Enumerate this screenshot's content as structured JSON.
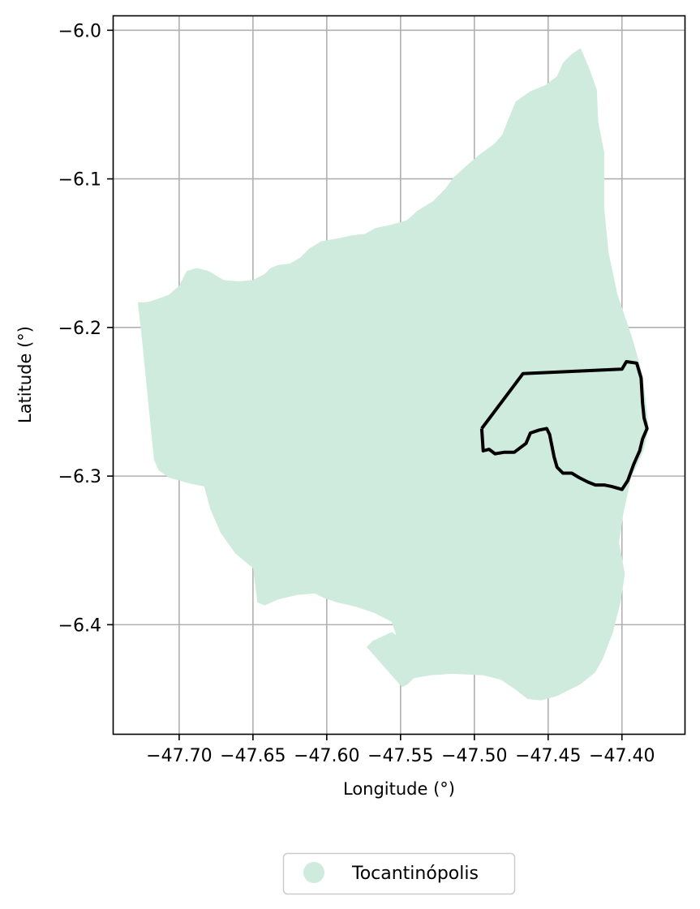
{
  "chart_data": {
    "type": "map",
    "xlabel": "Longitude (°)",
    "ylabel": "Latitude (°)",
    "xlim": [
      -47.745,
      -47.357
    ],
    "ylim": [
      -6.474,
      -5.99
    ],
    "grid": true,
    "x_ticks": [
      {
        "value": -47.7,
        "label": "−47.70"
      },
      {
        "value": -47.65,
        "label": "−47.65"
      },
      {
        "value": -47.6,
        "label": "−47.60"
      },
      {
        "value": -47.55,
        "label": "−47.55"
      },
      {
        "value": -47.5,
        "label": "−47.50"
      },
      {
        "value": -47.45,
        "label": "−47.45"
      },
      {
        "value": -47.4,
        "label": "−47.40"
      }
    ],
    "y_ticks": [
      {
        "value": -6.0,
        "label": "−6.0"
      },
      {
        "value": -6.1,
        "label": "−6.1"
      },
      {
        "value": -6.2,
        "label": "−6.2"
      },
      {
        "value": -6.3,
        "label": "−6.3"
      },
      {
        "value": -6.4,
        "label": "−6.4"
      }
    ],
    "legend": {
      "placement": "bottom-center",
      "entries": [
        {
          "label": "Tocantinópolis",
          "color": "#cfebdd"
        }
      ]
    },
    "municipality_boundary": {
      "name": "Tocantinópolis",
      "fill_color": "#cfebdd",
      "coordinates": [
        [
          -47.428,
          -6.012
        ],
        [
          -47.422,
          -6.026
        ],
        [
          -47.417,
          -6.04
        ],
        [
          -47.416,
          -6.062
        ],
        [
          -47.412,
          -6.082
        ],
        [
          -47.412,
          -6.12
        ],
        [
          -47.409,
          -6.15
        ],
        [
          -47.403,
          -6.178
        ],
        [
          -47.393,
          -6.207
        ],
        [
          -47.386,
          -6.232
        ],
        [
          -47.383,
          -6.257
        ],
        [
          -47.382,
          -6.268
        ],
        [
          -47.385,
          -6.282
        ],
        [
          -47.394,
          -6.302
        ],
        [
          -47.399,
          -6.325
        ],
        [
          -47.402,
          -6.345
        ],
        [
          -47.4,
          -6.355
        ],
        [
          -47.398,
          -6.366
        ],
        [
          -47.401,
          -6.385
        ],
        [
          -47.406,
          -6.405
        ],
        [
          -47.413,
          -6.423
        ],
        [
          -47.418,
          -6.432
        ],
        [
          -47.428,
          -6.44
        ],
        [
          -47.444,
          -6.448
        ],
        [
          -47.455,
          -6.451
        ],
        [
          -47.464,
          -6.45
        ],
        [
          -47.473,
          -6.443
        ],
        [
          -47.482,
          -6.437
        ],
        [
          -47.494,
          -6.434
        ],
        [
          -47.515,
          -6.433
        ],
        [
          -47.53,
          -6.434
        ],
        [
          -47.541,
          -6.436
        ],
        [
          -47.545,
          -6.44
        ],
        [
          -47.549,
          -6.442
        ],
        [
          -47.573,
          -6.415
        ],
        [
          -47.569,
          -6.411
        ],
        [
          -47.556,
          -6.405
        ],
        [
          -47.553,
          -6.407
        ],
        [
          -47.556,
          -6.398
        ],
        [
          -47.568,
          -6.392
        ],
        [
          -47.58,
          -6.388
        ],
        [
          -47.593,
          -6.385
        ],
        [
          -47.602,
          -6.382
        ],
        [
          -47.608,
          -6.379
        ],
        [
          -47.62,
          -6.38
        ],
        [
          -47.633,
          -6.383
        ],
        [
          -47.642,
          -6.387
        ],
        [
          -47.647,
          -6.385
        ],
        [
          -47.65,
          -6.362
        ],
        [
          -47.662,
          -6.352
        ],
        [
          -47.672,
          -6.338
        ],
        [
          -47.679,
          -6.322
        ],
        [
          -47.683,
          -6.307
        ],
        [
          -47.693,
          -6.305
        ],
        [
          -47.7,
          -6.303
        ],
        [
          -47.707,
          -6.301
        ],
        [
          -47.714,
          -6.296
        ],
        [
          -47.717,
          -6.289
        ],
        [
          -47.719,
          -6.27
        ],
        [
          -47.722,
          -6.24
        ],
        [
          -47.725,
          -6.21
        ],
        [
          -47.728,
          -6.183
        ],
        [
          -47.722,
          -6.183
        ],
        [
          -47.715,
          -6.181
        ],
        [
          -47.707,
          -6.178
        ],
        [
          -47.7,
          -6.172
        ],
        [
          -47.695,
          -6.162
        ],
        [
          -47.688,
          -6.16
        ],
        [
          -47.68,
          -6.162
        ],
        [
          -47.67,
          -6.168
        ],
        [
          -47.66,
          -6.169
        ],
        [
          -47.65,
          -6.168
        ],
        [
          -47.642,
          -6.164
        ],
        [
          -47.638,
          -6.16
        ],
        [
          -47.633,
          -6.158
        ],
        [
          -47.625,
          -6.157
        ],
        [
          -47.618,
          -6.153
        ],
        [
          -47.612,
          -6.147
        ],
        [
          -47.604,
          -6.142
        ],
        [
          -47.592,
          -6.14
        ],
        [
          -47.583,
          -6.138
        ],
        [
          -47.574,
          -6.137
        ],
        [
          -47.567,
          -6.133
        ],
        [
          -47.557,
          -6.131
        ],
        [
          -47.546,
          -6.128
        ],
        [
          -47.538,
          -6.121
        ],
        [
          -47.528,
          -6.115
        ],
        [
          -47.52,
          -6.107
        ],
        [
          -47.514,
          -6.099
        ],
        [
          -47.504,
          -6.09
        ],
        [
          -47.497,
          -6.084
        ],
        [
          -47.486,
          -6.076
        ],
        [
          -47.481,
          -6.07
        ],
        [
          -47.477,
          -6.06
        ],
        [
          -47.472,
          -6.048
        ],
        [
          -47.462,
          -6.041
        ],
        [
          -47.452,
          -6.037
        ],
        [
          -47.444,
          -6.031
        ],
        [
          -47.44,
          -6.022
        ],
        [
          -47.434,
          -6.016
        ]
      ]
    },
    "urban_area_outline": {
      "line_color": "#000000",
      "coordinates": [
        [
          -47.495,
          -6.268
        ],
        [
          -47.467,
          -6.231
        ],
        [
          -47.4,
          -6.228
        ],
        [
          -47.397,
          -6.223
        ],
        [
          -47.39,
          -6.224
        ],
        [
          -47.387,
          -6.234
        ],
        [
          -47.386,
          -6.251
        ],
        [
          -47.385,
          -6.261
        ],
        [
          -47.383,
          -6.268
        ],
        [
          -47.386,
          -6.275
        ],
        [
          -47.388,
          -6.283
        ],
        [
          -47.392,
          -6.292
        ],
        [
          -47.396,
          -6.303
        ],
        [
          -47.4,
          -6.309
        ],
        [
          -47.407,
          -6.307
        ],
        [
          -47.412,
          -6.306
        ],
        [
          -47.418,
          -6.306
        ],
        [
          -47.423,
          -6.304
        ],
        [
          -47.429,
          -6.301
        ],
        [
          -47.434,
          -6.298
        ],
        [
          -47.44,
          -6.298
        ],
        [
          -47.444,
          -6.294
        ],
        [
          -47.446,
          -6.287
        ],
        [
          -47.449,
          -6.272
        ],
        [
          -47.451,
          -6.268
        ],
        [
          -47.456,
          -6.269
        ],
        [
          -47.462,
          -6.271
        ],
        [
          -47.465,
          -6.278
        ],
        [
          -47.469,
          -6.281
        ],
        [
          -47.473,
          -6.284
        ],
        [
          -47.48,
          -6.284
        ],
        [
          -47.486,
          -6.285
        ],
        [
          -47.49,
          -6.282
        ],
        [
          -47.494,
          -6.283
        ],
        [
          -47.495,
          -6.268
        ]
      ]
    }
  }
}
